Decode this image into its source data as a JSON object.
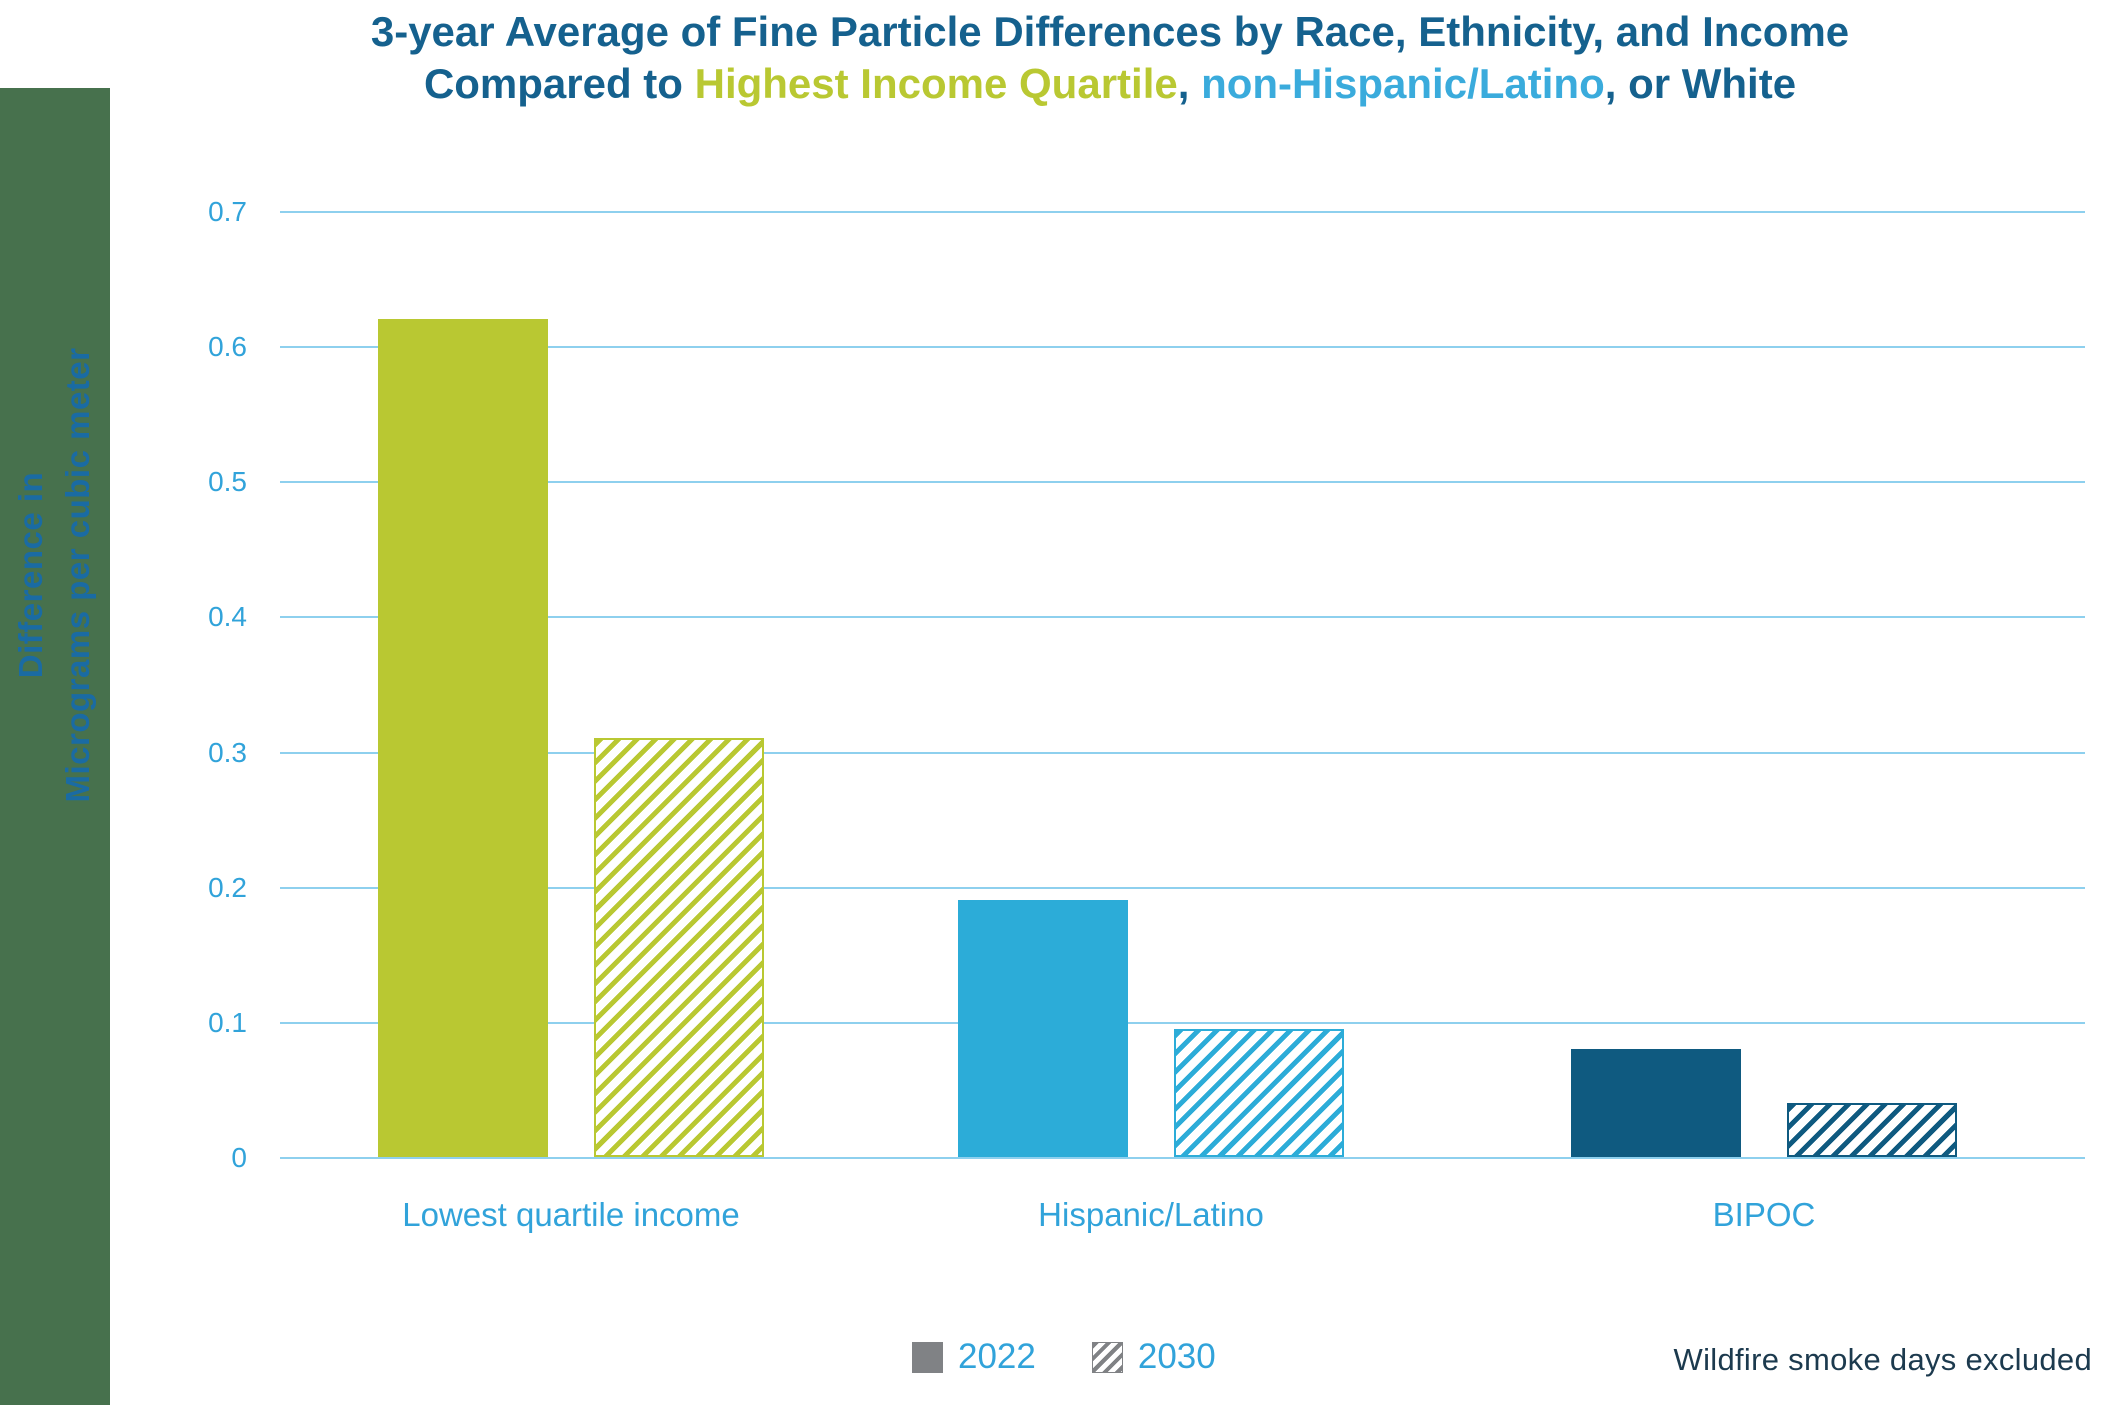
{
  "title": {
    "line1": "3-year Average of Fine Particle Differences by Race, Ethnicity, and Income",
    "line2_parts": [
      {
        "text": "Compared to ",
        "color": "#15618e"
      },
      {
        "text": "Highest Income Quartile",
        "color": "#b9c832"
      },
      {
        "text": ", ",
        "color": "#15618e"
      },
      {
        "text": "non-Hispanic/Latino",
        "color": "#3aabdc"
      },
      {
        "text": ", or White",
        "color": "#15618e"
      }
    ]
  },
  "y_axis": {
    "label_line1": "Difference in",
    "label_line2": "Micrograms per cubic meter",
    "tick_labels": [
      "0",
      "0.1",
      "0.2",
      "0.3",
      "0.4",
      "0.5",
      "0.6",
      "0.7"
    ]
  },
  "chart_data": {
    "type": "bar",
    "title": "3-year Average of Fine Particle Differences by Race, Ethnicity, and Income Compared to Highest Income Quartile, non-Hispanic/Latino, or White",
    "categories": [
      "Lowest quartile income",
      "Hispanic/Latino",
      "BIPOC"
    ],
    "series": [
      {
        "name": "2022",
        "style": "solid",
        "values": [
          0.62,
          0.19,
          0.08
        ]
      },
      {
        "name": "2030",
        "style": "hatched",
        "values": [
          0.31,
          0.095,
          0.04
        ]
      }
    ],
    "category_colors": [
      "#b9c832",
      "#2cacd8",
      "#0f5a80"
    ],
    "ylabel": "Difference in Micrograms per cubic meter",
    "ylim": [
      0,
      0.7
    ],
    "yticks": [
      0,
      0.1,
      0.2,
      0.3,
      0.4,
      0.5,
      0.6,
      0.7
    ],
    "grid": true,
    "legend_position": "bottom-center",
    "annotation": "Wildfire smoke days excluded"
  },
  "legend": {
    "items": [
      {
        "label": "2022",
        "swatch": "solid-gray-square"
      },
      {
        "label": "2030",
        "swatch": "hatched-gray-square"
      }
    ]
  },
  "note": "Wildfire smoke days excluded",
  "colors": {
    "strip": "#47714d",
    "title_dark_blue": "#15618e",
    "light_blue_text": "#31a3da",
    "axis_label_blue": "#1a6ba3",
    "gridline": "#8ed0ee",
    "legend_gray": "#808285",
    "note_navy": "#1c3a4e"
  }
}
